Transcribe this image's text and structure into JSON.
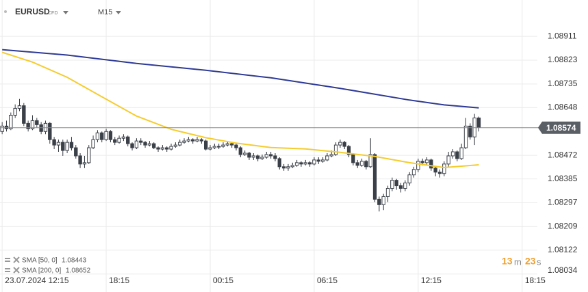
{
  "chart_data": {
    "type": "candlestick",
    "symbol": "EURUSD",
    "instrument_type": "CFD",
    "timeframe": "M15",
    "up_color": "#ffffff",
    "down_color": "#3b4048",
    "outline_color": "#3b4048",
    "grid": true,
    "ylim": [
      1.08031,
      1.09045
    ],
    "yticks": [
      1.08911,
      1.08823,
      1.08735,
      1.08648,
      1.08472,
      1.08385,
      1.08297,
      1.08209,
      1.08122,
      1.08034
    ],
    "xlim": [
      -0.5,
      123.5
    ],
    "xticks": [
      {
        "value": 0,
        "label": "23.07.2024 12:15"
      },
      {
        "value": 24,
        "label": "18:15"
      },
      {
        "value": 48,
        "label": "00:15"
      },
      {
        "value": 72,
        "label": "06:15"
      },
      {
        "value": 96,
        "label": "12:15"
      },
      {
        "value": 120,
        "label": "18:15"
      }
    ],
    "last_price": 1.08574,
    "candles": [
      [
        1.0856,
        1.08595,
        1.0855,
        1.0858
      ],
      [
        1.0858,
        1.086,
        1.0856,
        1.0857
      ],
      [
        1.0857,
        1.0863,
        1.08565,
        1.0862
      ],
      [
        1.0862,
        1.0866,
        1.0861,
        1.08645
      ],
      [
        1.08645,
        1.0868,
        1.08635,
        1.08655
      ],
      [
        1.08655,
        1.08665,
        1.0858,
        1.0859
      ],
      [
        1.0859,
        1.086,
        1.0856,
        1.0857
      ],
      [
        1.0857,
        1.0862,
        1.08565,
        1.086
      ],
      [
        1.086,
        1.0861,
        1.08575,
        1.08585
      ],
      [
        1.08585,
        1.08595,
        1.0855,
        1.0856
      ],
      [
        1.0856,
        1.086,
        1.0855,
        1.0859
      ],
      [
        1.0859,
        1.08595,
        1.08515,
        1.0853
      ],
      [
        1.0853,
        1.0854,
        1.08495,
        1.0851
      ],
      [
        1.0851,
        1.0853,
        1.08485,
        1.0852
      ],
      [
        1.0852,
        1.0853,
        1.0847,
        1.0849
      ],
      [
        1.0849,
        1.0853,
        1.0848,
        1.0852
      ],
      [
        1.0852,
        1.0854,
        1.0849,
        1.085
      ],
      [
        1.085,
        1.0851,
        1.0846,
        1.0847
      ],
      [
        1.0847,
        1.0848,
        1.08425,
        1.0844
      ],
      [
        1.0844,
        1.0847,
        1.08425,
        1.08445
      ],
      [
        1.08445,
        1.0851,
        1.0844,
        1.085
      ],
      [
        1.085,
        1.08545,
        1.08495,
        1.0853
      ],
      [
        1.0853,
        1.08565,
        1.0852,
        1.08555
      ],
      [
        1.08555,
        1.0856,
        1.0852,
        1.0853
      ],
      [
        1.0853,
        1.0857,
        1.08525,
        1.0856
      ],
      [
        1.0856,
        1.08565,
        1.0852,
        1.0853
      ],
      [
        1.0853,
        1.0854,
        1.0851,
        1.0852
      ],
      [
        1.0852,
        1.08545,
        1.08515,
        1.08535
      ],
      [
        1.08535,
        1.0855,
        1.08525,
        1.0854
      ],
      [
        1.0854,
        1.08545,
        1.08505,
        1.08515
      ],
      [
        1.08515,
        1.0852,
        1.0849,
        1.085
      ],
      [
        1.085,
        1.08535,
        1.08495,
        1.08525
      ],
      [
        1.08525,
        1.08535,
        1.0851,
        1.0852
      ],
      [
        1.0852,
        1.08525,
        1.085,
        1.0851
      ],
      [
        1.0851,
        1.08525,
        1.08505,
        1.08515
      ],
      [
        1.08515,
        1.0852,
        1.08495,
        1.085
      ],
      [
        1.085,
        1.08505,
        1.08485,
        1.08495
      ],
      [
        1.08495,
        1.0851,
        1.0849,
        1.085
      ],
      [
        1.085,
        1.08505,
        1.08485,
        1.08495
      ],
      [
        1.08495,
        1.08515,
        1.0849,
        1.08505
      ],
      [
        1.08505,
        1.0852,
        1.085,
        1.0851
      ],
      [
        1.0851,
        1.0853,
        1.08505,
        1.0852
      ],
      [
        1.0852,
        1.08535,
        1.08515,
        1.08525
      ],
      [
        1.08525,
        1.0854,
        1.0852,
        1.0853
      ],
      [
        1.0853,
        1.08535,
        1.08515,
        1.08525
      ],
      [
        1.08525,
        1.0854,
        1.0852,
        1.0853
      ],
      [
        1.0853,
        1.08535,
        1.08515,
        1.08525
      ],
      [
        1.08525,
        1.0853,
        1.0849,
        1.08495
      ],
      [
        1.08495,
        1.0851,
        1.0849,
        1.085
      ],
      [
        1.085,
        1.08515,
        1.08495,
        1.08505
      ],
      [
        1.08505,
        1.08515,
        1.08495,
        1.08505
      ],
      [
        1.08505,
        1.0852,
        1.085,
        1.0851
      ],
      [
        1.0851,
        1.08525,
        1.08505,
        1.08515
      ],
      [
        1.08515,
        1.0852,
        1.085,
        1.0851
      ],
      [
        1.0851,
        1.08515,
        1.0849,
        1.085
      ],
      [
        1.085,
        1.08505,
        1.08465,
        1.08475
      ],
      [
        1.08475,
        1.0849,
        1.0847,
        1.0848
      ],
      [
        1.0848,
        1.08485,
        1.08455,
        1.08465
      ],
      [
        1.08465,
        1.0848,
        1.08455,
        1.0847
      ],
      [
        1.0847,
        1.08475,
        1.0845,
        1.0846
      ],
      [
        1.0846,
        1.08475,
        1.08455,
        1.08465
      ],
      [
        1.08465,
        1.08485,
        1.0846,
        1.08475
      ],
      [
        1.08475,
        1.08485,
        1.0846,
        1.0847
      ],
      [
        1.0847,
        1.0848,
        1.0845,
        1.0846
      ],
      [
        1.0846,
        1.08465,
        1.0842,
        1.0843
      ],
      [
        1.0843,
        1.0844,
        1.08415,
        1.08425
      ],
      [
        1.08425,
        1.0844,
        1.08415,
        1.0843
      ],
      [
        1.0843,
        1.08445,
        1.08425,
        1.08435
      ],
      [
        1.08435,
        1.08455,
        1.0843,
        1.08445
      ],
      [
        1.08445,
        1.0845,
        1.0843,
        1.0844
      ],
      [
        1.0844,
        1.08455,
        1.08435,
        1.08445
      ],
      [
        1.08445,
        1.0845,
        1.0843,
        1.0844
      ],
      [
        1.0844,
        1.08465,
        1.08435,
        1.08455
      ],
      [
        1.08455,
        1.08465,
        1.0844,
        1.0845
      ],
      [
        1.0845,
        1.08465,
        1.08445,
        1.08455
      ],
      [
        1.08455,
        1.0848,
        1.0845,
        1.0847
      ],
      [
        1.0847,
        1.0849,
        1.08465,
        1.08475
      ],
      [
        1.08475,
        1.0852,
        1.0847,
        1.0851
      ],
      [
        1.0851,
        1.0853,
        1.085,
        1.0852
      ],
      [
        1.0852,
        1.08525,
        1.08495,
        1.08505
      ],
      [
        1.08505,
        1.0851,
        1.08465,
        1.08475
      ],
      [
        1.08475,
        1.0848,
        1.08435,
        1.08445
      ],
      [
        1.08445,
        1.08455,
        1.08425,
        1.08435
      ],
      [
        1.08435,
        1.0846,
        1.0843,
        1.0845
      ],
      [
        1.0845,
        1.08455,
        1.0842,
        1.0843
      ],
      [
        1.0843,
        1.08535,
        1.08425,
        1.08475
      ],
      [
        1.08475,
        1.0848,
        1.083,
        1.0831
      ],
      [
        1.0831,
        1.0832,
        1.08265,
        1.0829
      ],
      [
        1.0829,
        1.0833,
        1.0827,
        1.0832
      ],
      [
        1.0832,
        1.0836,
        1.083,
        1.0835
      ],
      [
        1.0835,
        1.0839,
        1.0834,
        1.0838
      ],
      [
        1.0838,
        1.08385,
        1.08345,
        1.0836
      ],
      [
        1.0836,
        1.0837,
        1.08335,
        1.0835
      ],
      [
        1.0835,
        1.0838,
        1.0834,
        1.0837
      ],
      [
        1.0837,
        1.0841,
        1.0836,
        1.084
      ],
      [
        1.084,
        1.0843,
        1.0839,
        1.0842
      ],
      [
        1.0842,
        1.0846,
        1.0841,
        1.0845
      ],
      [
        1.0845,
        1.0846,
        1.08435,
        1.08445
      ],
      [
        1.08445,
        1.08465,
        1.08435,
        1.08455
      ],
      [
        1.08455,
        1.0846,
        1.08415,
        1.08425
      ],
      [
        1.08425,
        1.0843,
        1.08395,
        1.0841
      ],
      [
        1.0841,
        1.0842,
        1.0839,
        1.08405
      ],
      [
        1.08405,
        1.0845,
        1.08395,
        1.0844
      ],
      [
        1.0844,
        1.08485,
        1.0843,
        1.0847
      ],
      [
        1.0847,
        1.08495,
        1.0846,
        1.08485
      ],
      [
        1.08485,
        1.0849,
        1.0845,
        1.0846
      ],
      [
        1.0846,
        1.08515,
        1.08455,
        1.085
      ],
      [
        1.085,
        1.0861,
        1.08495,
        1.0858
      ],
      [
        1.0858,
        1.0859,
        1.0853,
        1.0854
      ],
      [
        1.0854,
        1.08625,
        1.0851,
        1.0861
      ],
      [
        1.0861,
        1.08615,
        1.0856,
        1.08575
      ]
    ],
    "series": [
      {
        "name": "SMA [50, 0]",
        "last_value": 1.08443,
        "color": "#f5cc2e",
        "x": [
          0,
          7,
          15,
          23,
          31,
          39,
          47,
          54,
          62,
          70,
          78,
          86,
          94,
          102,
          110
        ],
        "values": [
          1.08852,
          1.08816,
          1.0876,
          1.08688,
          1.08617,
          1.08568,
          1.08537,
          1.08517,
          1.08501,
          1.08496,
          1.08483,
          1.08468,
          1.08445,
          1.08427,
          1.08437
        ]
      },
      {
        "name": "SMA [200, 0]",
        "last_value": 1.08652,
        "color": "#2e3a94",
        "x": [
          0,
          15,
          31,
          47,
          62,
          78,
          94,
          102,
          110
        ],
        "values": [
          1.08862,
          1.08842,
          1.08811,
          1.08786,
          1.08758,
          1.08719,
          1.08676,
          1.08658,
          1.08647
        ]
      }
    ],
    "countdown": {
      "minutes": 13,
      "minutes_unit": "m",
      "seconds": 23,
      "seconds_unit": "s"
    }
  }
}
